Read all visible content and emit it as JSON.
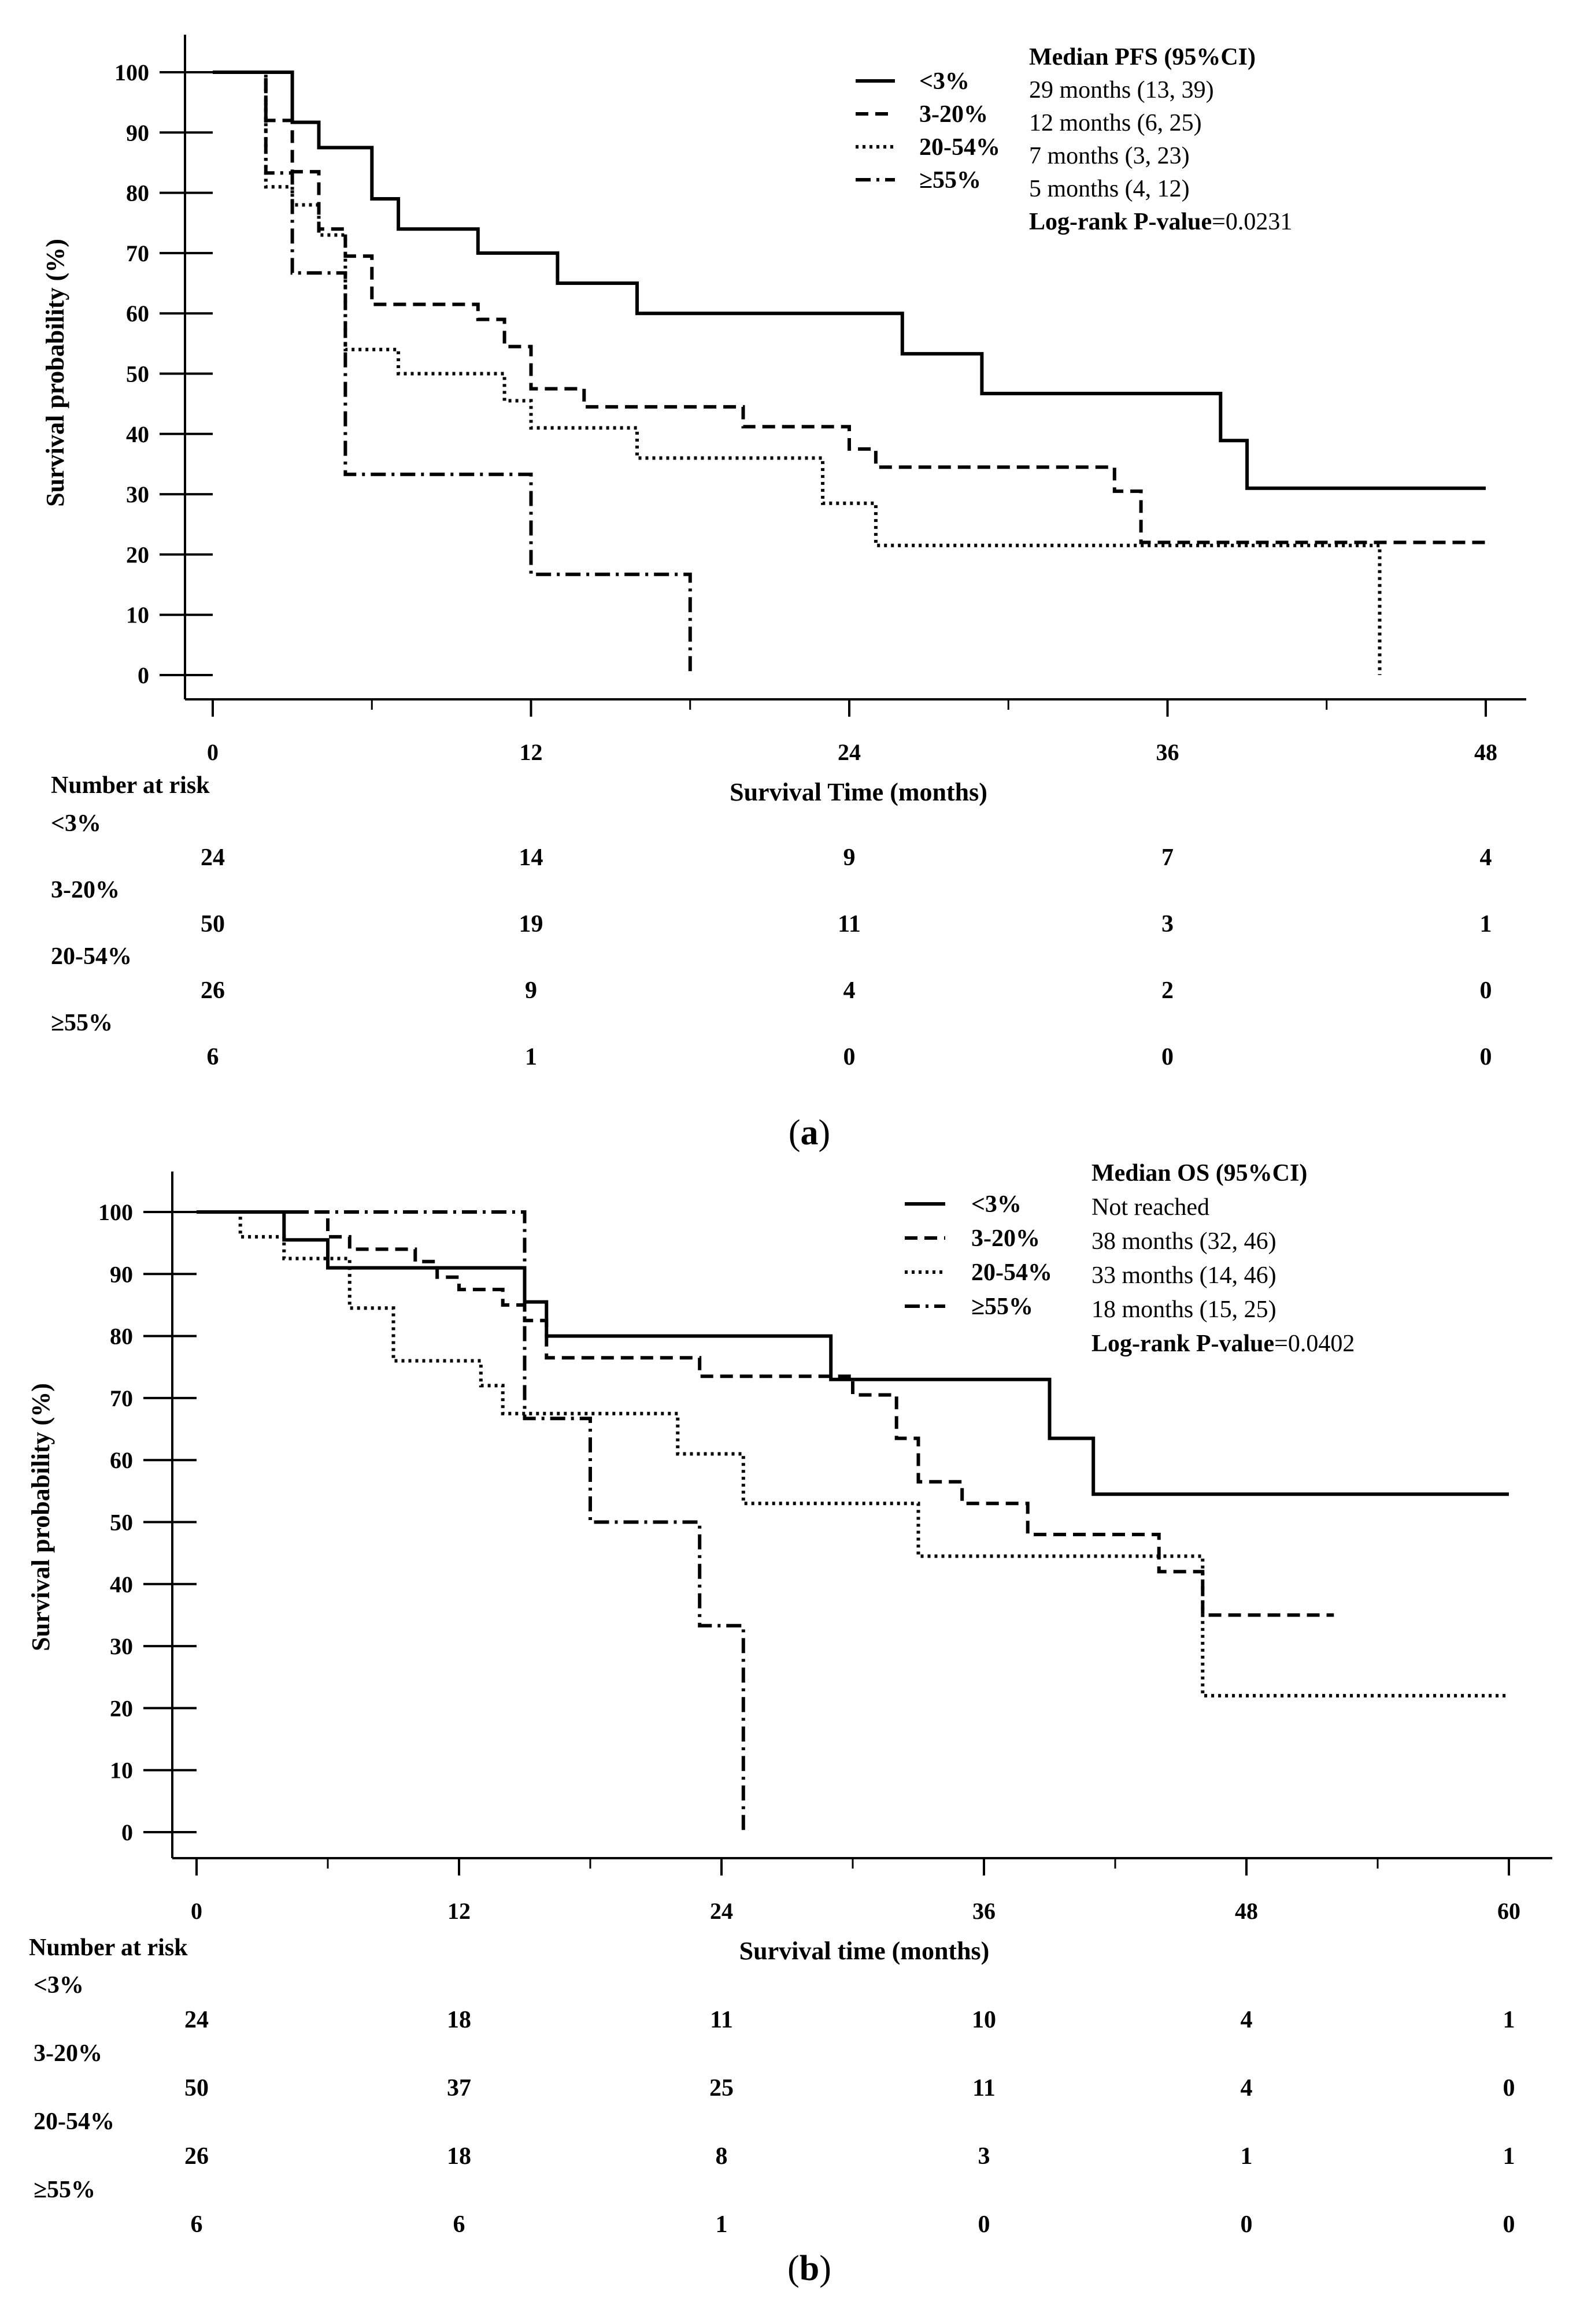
{
  "chart_data": [
    {
      "type": "line",
      "step": true,
      "panel_label": "a",
      "xlabel": "Survival Time (months)",
      "ylabel": "Survival probability (%)",
      "xlim": [
        0,
        48
      ],
      "ylim": [
        0,
        100
      ],
      "xticks": [
        "0",
        "12",
        "24",
        "36",
        "48"
      ],
      "yticks": [
        "100",
        "90",
        "80",
        "70",
        "60",
        "50",
        "40",
        "30",
        "20",
        "10",
        "0"
      ],
      "legend": {
        "placement": "top-right"
      },
      "series": [
        {
          "name": "<3%",
          "style": "solid",
          "points": [
            [
              0,
              100
            ],
            [
              3,
              100
            ],
            [
              3,
              91.7
            ],
            [
              4,
              91.7
            ],
            [
              4,
              87.5
            ],
            [
              6,
              87.5
            ],
            [
              6,
              79
            ],
            [
              7,
              79
            ],
            [
              7,
              74
            ],
            [
              10,
              74
            ],
            [
              10,
              70
            ],
            [
              13,
              70
            ],
            [
              13,
              65
            ],
            [
              16,
              65
            ],
            [
              16,
              60
            ],
            [
              26,
              60
            ],
            [
              26,
              53.3
            ],
            [
              29,
              53.3
            ],
            [
              29,
              46.7
            ],
            [
              38,
              46.7
            ],
            [
              38,
              38.9
            ],
            [
              39,
              38.9
            ],
            [
              39,
              31
            ],
            [
              48,
              31
            ]
          ]
        },
        {
          "name": "3-20%",
          "style": "dashed",
          "points": [
            [
              0,
              100
            ],
            [
              2,
              100
            ],
            [
              2,
              92
            ],
            [
              3,
              92
            ],
            [
              3,
              83.5
            ],
            [
              4,
              83.5
            ],
            [
              4,
              74
            ],
            [
              5,
              74
            ],
            [
              5,
              69.5
            ],
            [
              6,
              69.5
            ],
            [
              6,
              61.5
            ],
            [
              10,
              61.5
            ],
            [
              10,
              59
            ],
            [
              11,
              59
            ],
            [
              11,
              54.5
            ],
            [
              12,
              54.5
            ],
            [
              12,
              47.5
            ],
            [
              14,
              47.5
            ],
            [
              14,
              44.5
            ],
            [
              20,
              44.5
            ],
            [
              20,
              41.2
            ],
            [
              24,
              41.2
            ],
            [
              24,
              37.5
            ],
            [
              25,
              37.5
            ],
            [
              25,
              34.5
            ],
            [
              34,
              34.5
            ],
            [
              34,
              30.5
            ],
            [
              35,
              30.5
            ],
            [
              35,
              22
            ],
            [
              48,
              22
            ]
          ]
        },
        {
          "name": "20-54%",
          "style": "dotted",
          "points": [
            [
              0,
              100
            ],
            [
              2,
              100
            ],
            [
              2,
              81
            ],
            [
              3,
              81
            ],
            [
              3,
              78
            ],
            [
              4,
              78
            ],
            [
              4,
              73
            ],
            [
              5,
              73
            ],
            [
              5,
              54
            ],
            [
              7,
              54
            ],
            [
              7,
              50
            ],
            [
              11,
              50
            ],
            [
              11,
              45.5
            ],
            [
              12,
              45.5
            ],
            [
              12,
              41
            ],
            [
              16,
              41
            ],
            [
              16,
              36
            ],
            [
              23,
              36
            ],
            [
              23,
              28.5
            ],
            [
              25,
              28.5
            ],
            [
              25,
              21.5
            ],
            [
              44,
              21.5
            ],
            [
              44,
              0
            ]
          ]
        },
        {
          "name": "≥55%",
          "style": "dashdot",
          "points": [
            [
              0,
              100
            ],
            [
              2,
              100
            ],
            [
              2,
              83.3
            ],
            [
              3,
              83.3
            ],
            [
              3,
              66.7
            ],
            [
              5,
              66.7
            ],
            [
              5,
              33.3
            ],
            [
              12,
              33.3
            ],
            [
              12,
              16.7
            ],
            [
              18,
              16.7
            ],
            [
              18,
              0
            ]
          ]
        }
      ],
      "annotation": {
        "title": "Median PFS (95%CI)",
        "lines": [
          "29 months (13, 39)",
          "12 months (6, 25)",
          "7 months (3, 23)",
          "5 months (4, 12)"
        ],
        "pvalue_label": "Log-rank P-value",
        "pvalue": "=0.0231"
      },
      "risk_table": {
        "title": "Number at risk",
        "times": [
          0,
          12,
          24,
          36,
          48
        ],
        "rows": [
          {
            "label": "<3%",
            "counts": [
              "24",
              "14",
              "9",
              "7",
              "4"
            ]
          },
          {
            "label": "3-20%",
            "counts": [
              "50",
              "19",
              "11",
              "3",
              "1"
            ]
          },
          {
            "label": "20-54%",
            "counts": [
              "26",
              "9",
              "4",
              "2",
              "0"
            ]
          },
          {
            "label": "≥55%",
            "counts": [
              "6",
              "1",
              "0",
              "0",
              "0"
            ]
          }
        ]
      }
    },
    {
      "type": "line",
      "step": true,
      "panel_label": "b",
      "xlabel": "Survival time (months)",
      "ylabel": "Survival probability (%)",
      "xlim": [
        0,
        60
      ],
      "ylim": [
        0,
        100
      ],
      "xticks": [
        "0",
        "12",
        "24",
        "36",
        "48",
        "60"
      ],
      "yticks": [
        "100",
        "90",
        "80",
        "70",
        "60",
        "50",
        "40",
        "30",
        "20",
        "10",
        "0"
      ],
      "legend": {
        "placement": "top-right"
      },
      "series": [
        {
          "name": "<3%",
          "style": "solid",
          "points": [
            [
              0,
              100
            ],
            [
              4,
              100
            ],
            [
              4,
              95.5
            ],
            [
              6,
              95.5
            ],
            [
              6,
              91
            ],
            [
              15,
              91
            ],
            [
              15,
              85.5
            ],
            [
              16,
              85.5
            ],
            [
              16,
              80
            ],
            [
              29,
              80
            ],
            [
              29,
              73
            ],
            [
              39,
              73
            ],
            [
              39,
              63.5
            ],
            [
              41,
              63.5
            ],
            [
              41,
              54.5
            ],
            [
              60,
              54.5
            ]
          ]
        },
        {
          "name": "3-20%",
          "style": "dashed",
          "points": [
            [
              0,
              100
            ],
            [
              6,
              100
            ],
            [
              6,
              96
            ],
            [
              7,
              96
            ],
            [
              7,
              94
            ],
            [
              10,
              94
            ],
            [
              10,
              92
            ],
            [
              11,
              92
            ],
            [
              11,
              89.5
            ],
            [
              12,
              89.5
            ],
            [
              12,
              87.5
            ],
            [
              14,
              87.5
            ],
            [
              14,
              85
            ],
            [
              15,
              85
            ],
            [
              15,
              82.5
            ],
            [
              16,
              82.5
            ],
            [
              16,
              76.5
            ],
            [
              23,
              76.5
            ],
            [
              23,
              73.5
            ],
            [
              30,
              73.5
            ],
            [
              30,
              70.5
            ],
            [
              32,
              70.5
            ],
            [
              32,
              63.5
            ],
            [
              33,
              63.5
            ],
            [
              33,
              56.5
            ],
            [
              35,
              56.5
            ],
            [
              35,
              53
            ],
            [
              38,
              53
            ],
            [
              38,
              48
            ],
            [
              44,
              48
            ],
            [
              44,
              42
            ],
            [
              46,
              42
            ],
            [
              46,
              35
            ],
            [
              52,
              35
            ]
          ]
        },
        {
          "name": "20-54%",
          "style": "dotted",
          "points": [
            [
              0,
              100
            ],
            [
              2,
              100
            ],
            [
              2,
              96
            ],
            [
              4,
              96
            ],
            [
              4,
              92.5
            ],
            [
              7,
              92.5
            ],
            [
              7,
              84.5
            ],
            [
              9,
              84.5
            ],
            [
              9,
              76
            ],
            [
              13,
              76
            ],
            [
              13,
              72
            ],
            [
              14,
              72
            ],
            [
              14,
              67.5
            ],
            [
              22,
              67.5
            ],
            [
              22,
              61
            ],
            [
              25,
              61
            ],
            [
              25,
              53
            ],
            [
              33,
              53
            ],
            [
              33,
              44.5
            ],
            [
              46,
              44.5
            ],
            [
              46,
              22
            ],
            [
              60,
              22
            ]
          ]
        },
        {
          "name": "≥55%",
          "style": "dashdot",
          "points": [
            [
              0,
              100
            ],
            [
              15,
              100
            ],
            [
              15,
              66.7
            ],
            [
              18,
              66.7
            ],
            [
              18,
              50
            ],
            [
              23,
              50
            ],
            [
              23,
              33.3
            ],
            [
              25,
              33.3
            ],
            [
              25,
              0
            ]
          ]
        }
      ],
      "annotation": {
        "title": "Median OS (95%CI)",
        "lines": [
          "Not reached",
          "38 months (32, 46)",
          "33 months (14, 46)",
          "18 months (15, 25)"
        ],
        "pvalue_label": "Log-rank P-value",
        "pvalue": "=0.0402"
      },
      "risk_table": {
        "title": "Number at risk",
        "times": [
          0,
          12,
          24,
          36,
          48,
          60
        ],
        "rows": [
          {
            "label": "<3%",
            "counts": [
              "24",
              "18",
              "11",
              "10",
              "4",
              "1"
            ]
          },
          {
            "label": "3-20%",
            "counts": [
              "50",
              "37",
              "25",
              "11",
              "4",
              "0"
            ]
          },
          {
            "label": "20-54%",
            "counts": [
              "26",
              "18",
              "8",
              "3",
              "1",
              "1"
            ]
          },
          {
            "label": "≥55%",
            "counts": [
              "6",
              "6",
              "1",
              "0",
              "0",
              "0"
            ]
          }
        ]
      }
    }
  ]
}
